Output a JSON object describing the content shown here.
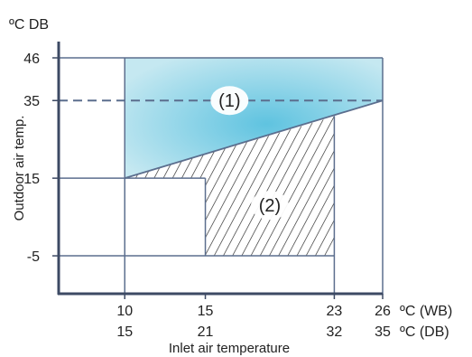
{
  "chart_data": {
    "type": "area",
    "title": "",
    "y_unit_label": "ºC DB",
    "ylabel": "Outdoor air temp.",
    "xlabel": "Inlet air temperature",
    "x_ticks": [
      {
        "wb": "10",
        "db": "15",
        "value": 10
      },
      {
        "wb": "15",
        "db": "21",
        "value": 15
      },
      {
        "wb": "23",
        "db": "32",
        "value": 23
      },
      {
        "wb": "26",
        "db": "35",
        "value": 26
      }
    ],
    "x_unit_labels": {
      "wb": "ºC (WB)",
      "db": "ºC (DB)"
    },
    "y_ticks": [
      {
        "label": "46",
        "value": 46
      },
      {
        "label": "35",
        "value": 35
      },
      {
        "label": "15",
        "value": 15
      },
      {
        "label": "-5",
        "value": -5
      }
    ],
    "xlim": [
      5.9,
      26
    ],
    "ylim": [
      -15,
      46
    ],
    "dashed_line_y": 35,
    "regions": [
      {
        "label": "(1)",
        "fill": "#7ccde3",
        "style": "gradient",
        "polygon": [
          [
            10,
            15
          ],
          [
            10,
            46
          ],
          [
            26,
            46
          ],
          [
            26,
            35
          ]
        ],
        "label_at": [
          16.5,
          35
        ]
      },
      {
        "label": "(2)",
        "fill": "#222222",
        "style": "hatch",
        "polygon": [
          [
            10,
            15
          ],
          [
            23,
            30.9
          ],
          [
            23,
            -5
          ],
          [
            15,
            -5
          ],
          [
            15,
            15
          ]
        ],
        "label_at": [
          19,
          8
        ]
      }
    ],
    "boundary_lines": [
      {
        "from": [
          10,
          15
        ],
        "to": [
          26,
          35
        ]
      }
    ],
    "grid_segments": [
      {
        "from": [
          10,
          46
        ],
        "to": [
          10,
          -15
        ]
      },
      {
        "from": [
          15,
          15
        ],
        "to": [
          15,
          -5
        ]
      },
      {
        "from": [
          23,
          31
        ],
        "to": [
          23,
          -15
        ]
      },
      {
        "from": [
          26,
          46
        ],
        "to": [
          26,
          -15
        ]
      },
      {
        "from": [
          5.9,
          15
        ],
        "to": [
          15,
          15
        ]
      },
      {
        "from": [
          5.9,
          -5
        ],
        "to": [
          23,
          -5
        ]
      },
      {
        "from": [
          5.9,
          46
        ],
        "to": [
          26,
          46
        ]
      }
    ],
    "colors": {
      "axis": "#3d4a64",
      "lines": "#5b6e8e",
      "dashed": "#5b6e8e",
      "region1_light": "#c5e8f1",
      "region1_dark": "#5fc3e0"
    }
  }
}
